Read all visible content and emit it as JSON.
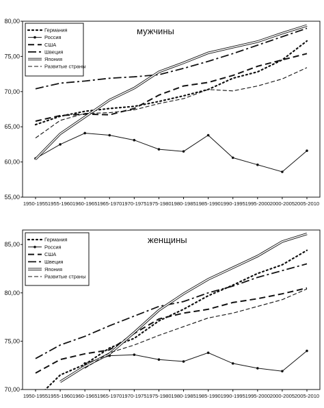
{
  "chart_data": [
    {
      "type": "line",
      "title": "мужчины",
      "categories": [
        "1950-1955",
        "1955-1960",
        "1960-1965",
        "1965-1970",
        "1970-1975",
        "1975-1980",
        "1980-1985",
        "1985-1990",
        "1990-1995",
        "1995-2000",
        "2000-2005",
        "2005-2010"
      ],
      "ylim": [
        55,
        80
      ],
      "yticks": [
        "55,00",
        "60,00",
        "65,00",
        "70,00",
        "75,00",
        "80,00"
      ],
      "grid": false,
      "legend_position": "top-left",
      "series": [
        {
          "name": "Германия",
          "values": [
            65.3,
            66.5,
            67.2,
            67.6,
            67.9,
            68.6,
            69.4,
            70.3,
            71.9,
            72.8,
            74.5,
            77.2
          ]
        },
        {
          "name": "Россия",
          "values": [
            60.5,
            62.5,
            64.1,
            63.8,
            63.1,
            61.8,
            61.5,
            63.8,
            60.6,
            59.6,
            58.6,
            61.6
          ]
        },
        {
          "name": "США",
          "values": [
            65.8,
            66.6,
            66.8,
            66.7,
            67.6,
            69.5,
            70.8,
            71.3,
            72.3,
            73.6,
            74.5,
            75.4
          ]
        },
        {
          "name": "Швеция",
          "values": [
            70.4,
            71.2,
            71.5,
            71.9,
            72.1,
            72.4,
            73.3,
            74.3,
            75.4,
            76.6,
            77.8,
            79.0
          ]
        },
        {
          "name": "Япония",
          "values": [
            60.4,
            64.0,
            66.4,
            68.8,
            70.5,
            72.8,
            74.1,
            75.5,
            76.3,
            77.1,
            78.3,
            79.4
          ]
        },
        {
          "name": "Развитые страны",
          "values": [
            63.4,
            65.9,
            66.9,
            67.0,
            67.4,
            68.3,
            69.0,
            70.3,
            70.1,
            70.8,
            71.8,
            73.4
          ]
        }
      ]
    },
    {
      "type": "line",
      "title": "женщины",
      "categories": [
        "1950-1955",
        "1955-1960",
        "1960-1965",
        "1965-1970",
        "1970-1975",
        "1975-1980",
        "1980-1985",
        "1985-1990",
        "1990-1995",
        "1995-2000",
        "2000-2005",
        "2005-2010"
      ],
      "ylim": [
        70,
        86.5
      ],
      "yticks": [
        "70,00",
        "75,00",
        "80,00",
        "85,00"
      ],
      "grid": false,
      "legend_position": "top-left",
      "series": [
        {
          "name": "Германия",
          "values": [
            69.0,
            71.5,
            72.6,
            74.3,
            75.3,
            77.1,
            78.3,
            79.7,
            80.8,
            82.0,
            82.9,
            84.4
          ]
        },
        {
          "name": "Россия",
          "values": [
            null,
            null,
            72.7,
            73.5,
            73.6,
            73.1,
            72.9,
            73.8,
            72.7,
            72.2,
            71.9,
            74.0
          ]
        },
        {
          "name": "США",
          "values": [
            71.7,
            73.1,
            73.7,
            74.1,
            75.8,
            77.3,
            77.9,
            78.3,
            79.0,
            79.4,
            79.9,
            80.5
          ]
        },
        {
          "name": "Швеция",
          "values": [
            73.2,
            74.6,
            75.5,
            76.6,
            77.6,
            78.6,
            79.1,
            80.0,
            80.7,
            81.6,
            82.3,
            83.0
          ]
        },
        {
          "name": "Япония",
          "values": [
            null,
            70.8,
            72.4,
            73.7,
            75.9,
            78.2,
            79.9,
            81.4,
            82.6,
            83.8,
            85.3,
            86.1
          ]
        },
        {
          "name": "Развитые страны",
          "values": [
            null,
            null,
            72.2,
            73.8,
            74.6,
            75.6,
            76.5,
            77.4,
            77.9,
            78.6,
            79.3,
            80.4
          ]
        }
      ]
    }
  ]
}
